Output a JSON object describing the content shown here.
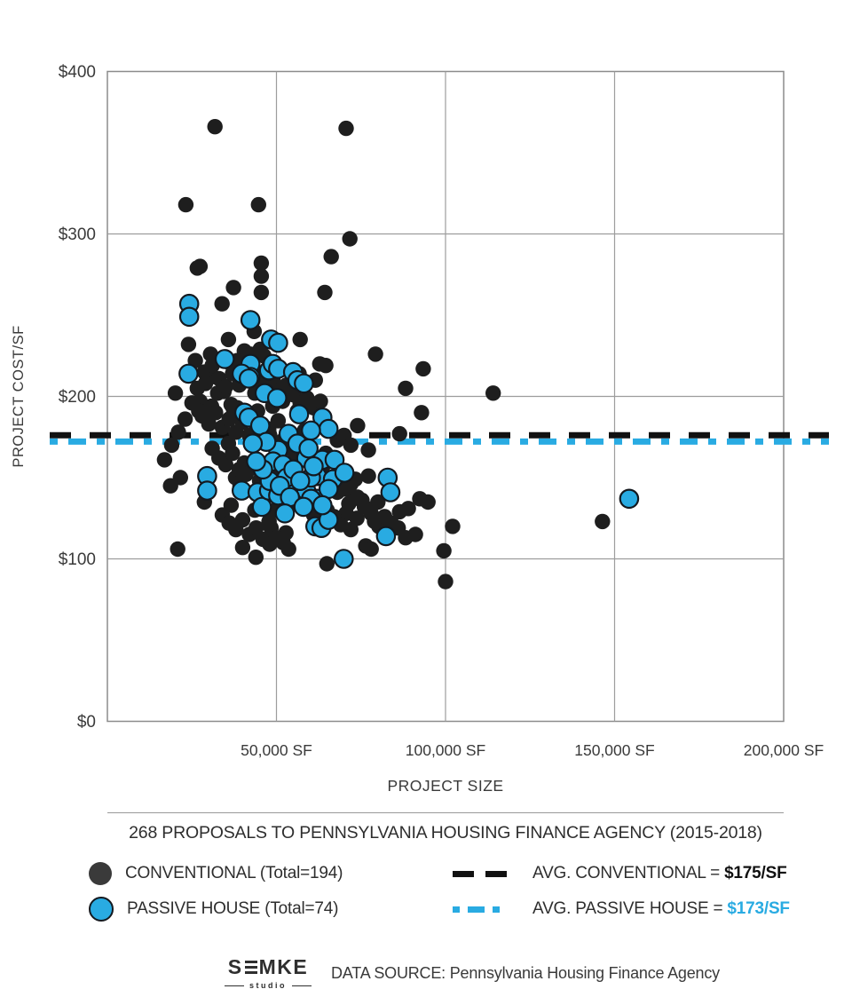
{
  "chart_data": {
    "type": "scatter",
    "xlabel": "PROJECT SIZE",
    "ylabel": "PROJECT COST/SF",
    "xlim": [
      0,
      200000
    ],
    "ylim": [
      0,
      400
    ],
    "grid": true,
    "x_ticks": [
      {
        "value": 50000,
        "label": "50,000 SF"
      },
      {
        "value": 100000,
        "label": "100,000 SF"
      },
      {
        "value": 150000,
        "label": "150,000 SF"
      },
      {
        "value": 200000,
        "label": "200,000 SF"
      }
    ],
    "y_ticks": [
      {
        "value": 0,
        "label": "$0"
      },
      {
        "value": 100,
        "label": "$100"
      },
      {
        "value": 200,
        "label": "$200"
      },
      {
        "value": 300,
        "label": "$300"
      },
      {
        "value": 400,
        "label": "$400"
      }
    ],
    "reference_lines": [
      {
        "name": "avg-conventional",
        "value": 175,
        "label": "AVG. CONVENTIONAL",
        "color": "#111111",
        "style": "dashed"
      },
      {
        "name": "avg-passive-house",
        "value": 173,
        "label": "AVG. PASSIVE HOUSE",
        "color": "#29abe2",
        "style": "dashed"
      }
    ],
    "series": [
      {
        "name": "CONVENTIONAL",
        "total": 194,
        "color": "#1e1e1e",
        "points": [
          [
            31800,
            366
          ],
          [
            23200,
            318
          ],
          [
            44700,
            318
          ],
          [
            70600,
            365
          ],
          [
            71700,
            297
          ],
          [
            66200,
            286
          ],
          [
            27400,
            280
          ],
          [
            45500,
            282
          ],
          [
            45500,
            274
          ],
          [
            26600,
            279
          ],
          [
            37300,
            267
          ],
          [
            45500,
            264
          ],
          [
            33900,
            257
          ],
          [
            64300,
            264
          ],
          [
            43400,
            240
          ],
          [
            57000,
            235
          ],
          [
            35800,
            235
          ],
          [
            30500,
            226
          ],
          [
            36600,
            220
          ],
          [
            40500,
            228
          ],
          [
            42300,
            226
          ],
          [
            45200,
            229
          ],
          [
            46300,
            225
          ],
          [
            79300,
            226
          ],
          [
            28700,
            215
          ],
          [
            30800,
            212
          ],
          [
            26600,
            205
          ],
          [
            32600,
            202
          ],
          [
            34500,
            203
          ],
          [
            20100,
            202
          ],
          [
            27400,
            197
          ],
          [
            30800,
            194
          ],
          [
            37300,
            192
          ],
          [
            38400,
            222
          ],
          [
            45200,
            204
          ],
          [
            62800,
            220
          ],
          [
            64600,
            219
          ],
          [
            61500,
            210
          ],
          [
            56700,
            214
          ],
          [
            43600,
            202
          ],
          [
            51800,
            197
          ],
          [
            48900,
            194
          ],
          [
            56200,
            191
          ],
          [
            47600,
            180
          ],
          [
            50500,
            185
          ],
          [
            44400,
            191
          ],
          [
            38400,
            193
          ],
          [
            36600,
            195
          ],
          [
            74000,
            182
          ],
          [
            88200,
            205
          ],
          [
            93400,
            217
          ],
          [
            92900,
            190
          ],
          [
            86400,
            177
          ],
          [
            58300,
            179
          ],
          [
            114100,
            202
          ],
          [
            16900,
            161
          ],
          [
            21600,
            150
          ],
          [
            18700,
            145
          ],
          [
            28700,
            135
          ],
          [
            35800,
            171
          ],
          [
            37900,
            150
          ],
          [
            36600,
            133
          ],
          [
            40500,
            159
          ],
          [
            43900,
            161
          ],
          [
            39200,
            145
          ],
          [
            43600,
            130
          ],
          [
            48400,
            154
          ],
          [
            49700,
            156
          ],
          [
            53100,
            177
          ],
          [
            55400,
            161
          ],
          [
            58100,
            149
          ],
          [
            60900,
            153
          ],
          [
            49700,
            130
          ],
          [
            47800,
            123
          ],
          [
            48400,
            119
          ],
          [
            52800,
            116
          ],
          [
            53600,
            106
          ],
          [
            20800,
            106
          ],
          [
            40000,
            107
          ],
          [
            43900,
            101
          ],
          [
            64600,
            165
          ],
          [
            77200,
            167
          ],
          [
            77200,
            151
          ],
          [
            73300,
            149
          ],
          [
            72700,
            137
          ],
          [
            75300,
            136
          ],
          [
            71400,
            134
          ],
          [
            70600,
            128
          ],
          [
            73800,
            125
          ],
          [
            72000,
            118
          ],
          [
            79000,
            123
          ],
          [
            80300,
            120
          ],
          [
            86400,
            129
          ],
          [
            89000,
            131
          ],
          [
            92400,
            137
          ],
          [
            94800,
            135
          ],
          [
            88200,
            113
          ],
          [
            91100,
            115
          ],
          [
            76400,
            108
          ],
          [
            78000,
            106
          ],
          [
            64900,
            97
          ],
          [
            102100,
            120
          ],
          [
            99500,
            105
          ],
          [
            100000,
            86
          ],
          [
            146400,
            123
          ],
          [
            24000,
            232
          ],
          [
            26000,
            222
          ],
          [
            29000,
            208
          ],
          [
            31000,
            219
          ],
          [
            33000,
            211
          ],
          [
            35000,
            206
          ],
          [
            37000,
            214
          ],
          [
            39000,
            207
          ],
          [
            41000,
            216
          ],
          [
            43000,
            209
          ],
          [
            45000,
            212
          ],
          [
            47000,
            206
          ],
          [
            49000,
            210
          ],
          [
            51000,
            204
          ],
          [
            53000,
            207
          ],
          [
            55000,
            201
          ],
          [
            57000,
            196
          ],
          [
            59000,
            199
          ],
          [
            61000,
            193
          ],
          [
            63000,
            197
          ],
          [
            28000,
            188
          ],
          [
            30000,
            183
          ],
          [
            32000,
            190
          ],
          [
            34000,
            181
          ],
          [
            36000,
            186
          ],
          [
            38000,
            178
          ],
          [
            40000,
            184
          ],
          [
            42000,
            176
          ],
          [
            44000,
            179
          ],
          [
            46000,
            173
          ],
          [
            48000,
            176
          ],
          [
            50000,
            170
          ],
          [
            52000,
            173
          ],
          [
            54000,
            168
          ],
          [
            56000,
            171
          ],
          [
            58000,
            165
          ],
          [
            60000,
            168
          ],
          [
            62000,
            162
          ],
          [
            64000,
            158
          ],
          [
            66000,
            161
          ],
          [
            31000,
            168
          ],
          [
            33000,
            162
          ],
          [
            35000,
            158
          ],
          [
            37000,
            165
          ],
          [
            39000,
            155
          ],
          [
            41000,
            152
          ],
          [
            43000,
            156
          ],
          [
            45000,
            148
          ],
          [
            47000,
            144
          ],
          [
            49000,
            141
          ],
          [
            51000,
            138
          ],
          [
            53000,
            143
          ],
          [
            55000,
            135
          ],
          [
            57000,
            139
          ],
          [
            59000,
            131
          ],
          [
            61000,
            127
          ],
          [
            63000,
            124
          ],
          [
            65000,
            130
          ],
          [
            67000,
            126
          ],
          [
            69000,
            121
          ],
          [
            34000,
            127
          ],
          [
            36000,
            122
          ],
          [
            38000,
            118
          ],
          [
            40000,
            124
          ],
          [
            42000,
            115
          ],
          [
            44000,
            119
          ],
          [
            46000,
            112
          ],
          [
            48000,
            109
          ],
          [
            50000,
            113
          ],
          [
            52000,
            110
          ],
          [
            66000,
            144
          ],
          [
            68000,
            141
          ],
          [
            70000,
            143
          ],
          [
            72000,
            146
          ],
          [
            74000,
            138
          ],
          [
            76000,
            132
          ],
          [
            78000,
            128
          ],
          [
            80000,
            135
          ],
          [
            82000,
            126
          ],
          [
            84000,
            122
          ],
          [
            86000,
            119
          ],
          [
            25000,
            196
          ],
          [
            27000,
            191
          ],
          [
            23000,
            186
          ],
          [
            21000,
            178
          ],
          [
            19000,
            170
          ],
          [
            68000,
            173
          ],
          [
            70000,
            176
          ],
          [
            72000,
            170
          ]
        ]
      },
      {
        "name": "PASSIVE HOUSE",
        "total": 74,
        "color": "#29abe2",
        "stroke": "#14191f",
        "points": [
          [
            24200,
            257
          ],
          [
            24200,
            249
          ],
          [
            42300,
            247
          ],
          [
            48400,
            235
          ],
          [
            50500,
            233
          ],
          [
            34700,
            223
          ],
          [
            47800,
            216
          ],
          [
            42300,
            220
          ],
          [
            42300,
            212
          ],
          [
            24000,
            214
          ],
          [
            46500,
            202
          ],
          [
            48900,
            220
          ],
          [
            50500,
            217
          ],
          [
            54900,
            215
          ],
          [
            56200,
            210
          ],
          [
            58100,
            208
          ],
          [
            39700,
            214
          ],
          [
            41800,
            211
          ],
          [
            50200,
            199
          ],
          [
            56700,
            189
          ],
          [
            40500,
            190
          ],
          [
            41800,
            187
          ],
          [
            45200,
            182
          ],
          [
            63600,
            187
          ],
          [
            65400,
            180
          ],
          [
            53600,
            177
          ],
          [
            60200,
            179
          ],
          [
            29500,
            151
          ],
          [
            29500,
            142
          ],
          [
            39700,
            142
          ],
          [
            44400,
            141
          ],
          [
            45700,
            132
          ],
          [
            50500,
            167
          ],
          [
            56200,
            171
          ],
          [
            58800,
            162
          ],
          [
            47800,
            142
          ],
          [
            50500,
            139
          ],
          [
            54100,
            146
          ],
          [
            56200,
            137
          ],
          [
            58800,
            142
          ],
          [
            62000,
            137
          ],
          [
            61500,
            120
          ],
          [
            63300,
            119
          ],
          [
            65400,
            124
          ],
          [
            63600,
            161
          ],
          [
            67200,
            161
          ],
          [
            62000,
            151
          ],
          [
            66700,
            149
          ],
          [
            70100,
            153
          ],
          [
            60200,
            150
          ],
          [
            65400,
            143
          ],
          [
            60200,
            137
          ],
          [
            63600,
            133
          ],
          [
            82900,
            150
          ],
          [
            83700,
            141
          ],
          [
            82400,
            114
          ],
          [
            69900,
            100
          ],
          [
            154300,
            137
          ],
          [
            47000,
            172
          ],
          [
            49000,
            160
          ],
          [
            52000,
            158
          ],
          [
            53000,
            150
          ],
          [
            55000,
            155
          ],
          [
            57000,
            148
          ],
          [
            48000,
            148
          ],
          [
            51000,
            145
          ],
          [
            54000,
            138
          ],
          [
            46000,
            155
          ],
          [
            58000,
            132
          ],
          [
            52500,
            128
          ],
          [
            44000,
            160
          ],
          [
            43000,
            171
          ],
          [
            59500,
            168
          ],
          [
            61000,
            157
          ]
        ]
      }
    ]
  },
  "legend": {
    "title": "268 PROPOSALS TO PENNSYLVANIA HOUSING FINANCE AGENCY (2015-2018)",
    "items": [
      {
        "label": "CONVENTIONAL (Total=194)"
      },
      {
        "label": "PASSIVE HOUSE (Total=74)"
      }
    ],
    "avg_items": [
      {
        "label": "AVG. CONVENTIONAL =",
        "value": "$175/SF"
      },
      {
        "label": "AVG. PASSIVE HOUSE =",
        "value": "$173/SF"
      }
    ]
  },
  "footer": {
    "logo_text": "SEMKE",
    "logo_parts": [
      "S",
      "MKE"
    ],
    "logo_sub": "studio",
    "source": "DATA SOURCE: Pennsylvania Housing Finance Agency"
  }
}
